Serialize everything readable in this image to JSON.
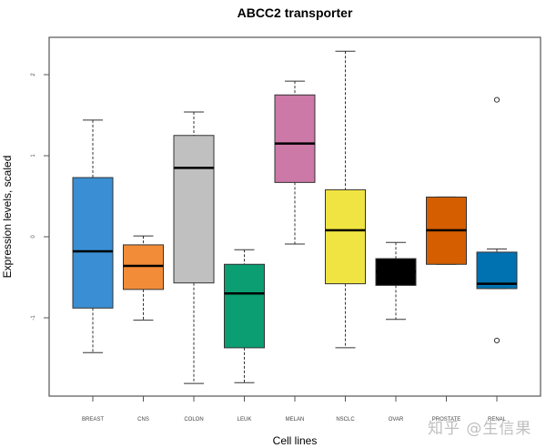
{
  "chart_data": {
    "type": "boxplot",
    "title": "ABCC2 transporter",
    "xlabel": "Cell lines",
    "ylabel": "Expression levels, scaled",
    "ylim": [
      -1.95,
      2.45
    ],
    "yticks": [
      -1,
      0,
      1,
      2
    ],
    "ytick_labels": [
      "-1",
      "0",
      "1",
      "2"
    ],
    "grid": false,
    "legend": null,
    "categories": [
      "BREAST",
      "CNS",
      "COLON",
      "LEUK",
      "MELAN",
      "NSCLC",
      "OVAR",
      "PROSTATE",
      "RENAL"
    ],
    "colors": [
      "#3a8fd4",
      "#f28c38",
      "#c0c0c0",
      "#0a9e72",
      "#cc79a7",
      "#f0e442",
      "#000000",
      "#d55e00",
      "#0072b2"
    ],
    "boxes": [
      {
        "name": "BREAST",
        "min": -1.43,
        "q1": -0.88,
        "median": -0.18,
        "q3": 0.73,
        "max": 1.44,
        "outliers": []
      },
      {
        "name": "CNS",
        "min": -1.03,
        "q1": -0.65,
        "median": -0.36,
        "q3": -0.1,
        "max": 0.01,
        "outliers": []
      },
      {
        "name": "COLON",
        "min": -1.81,
        "q1": -0.57,
        "median": 0.85,
        "q3": 1.25,
        "max": 1.54,
        "outliers": []
      },
      {
        "name": "LEUK",
        "min": -1.8,
        "q1": -1.37,
        "median": -0.7,
        "q3": -0.34,
        "max": -0.16,
        "outliers": []
      },
      {
        "name": "MELAN",
        "min": -0.09,
        "q1": 0.67,
        "median": 1.15,
        "q3": 1.75,
        "max": 1.92,
        "outliers": []
      },
      {
        "name": "NSCLC",
        "min": -1.37,
        "q1": -0.58,
        "median": 0.08,
        "q3": 0.58,
        "max": 2.29,
        "outliers": []
      },
      {
        "name": "OVAR",
        "min": -1.02,
        "q1": -0.6,
        "median": -0.43,
        "q3": -0.27,
        "max": -0.07,
        "outliers": []
      },
      {
        "name": "PROSTATE",
        "min": -0.34,
        "q1": -0.34,
        "median": 0.08,
        "q3": 0.49,
        "max": 0.49,
        "outliers": []
      },
      {
        "name": "RENAL",
        "min": -0.64,
        "q1": -0.64,
        "median": -0.58,
        "q3": -0.19,
        "max": -0.15,
        "outliers": [
          1.69,
          -1.28
        ]
      }
    ]
  },
  "watermark": "知乎 @生信果"
}
